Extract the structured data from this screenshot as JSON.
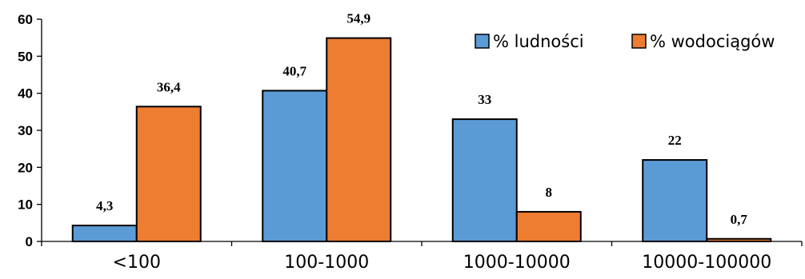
{
  "chart_data": {
    "type": "bar",
    "categories": [
      "<100",
      "100-1000",
      "1000-10000",
      "10000-100000"
    ],
    "series": [
      {
        "name": "% ludności",
        "values": [
          4.3,
          40.7,
          33,
          22
        ],
        "labels": [
          "4,3",
          "40,7",
          "33",
          "22"
        ],
        "color": "#5B9BD5"
      },
      {
        "name": "% wodociągów",
        "values": [
          36.4,
          54.9,
          8,
          0.7
        ],
        "labels": [
          "36,4",
          "54,9",
          "8",
          "0,7"
        ],
        "color": "#ED7D31"
      }
    ],
    "ylim": [
      0,
      60
    ],
    "yticks": [
      "0",
      "10",
      "20",
      "30",
      "40",
      "50",
      "60"
    ],
    "grid": false,
    "legend_position": "top-right",
    "title": "",
    "xlabel": "",
    "ylabel": ""
  }
}
